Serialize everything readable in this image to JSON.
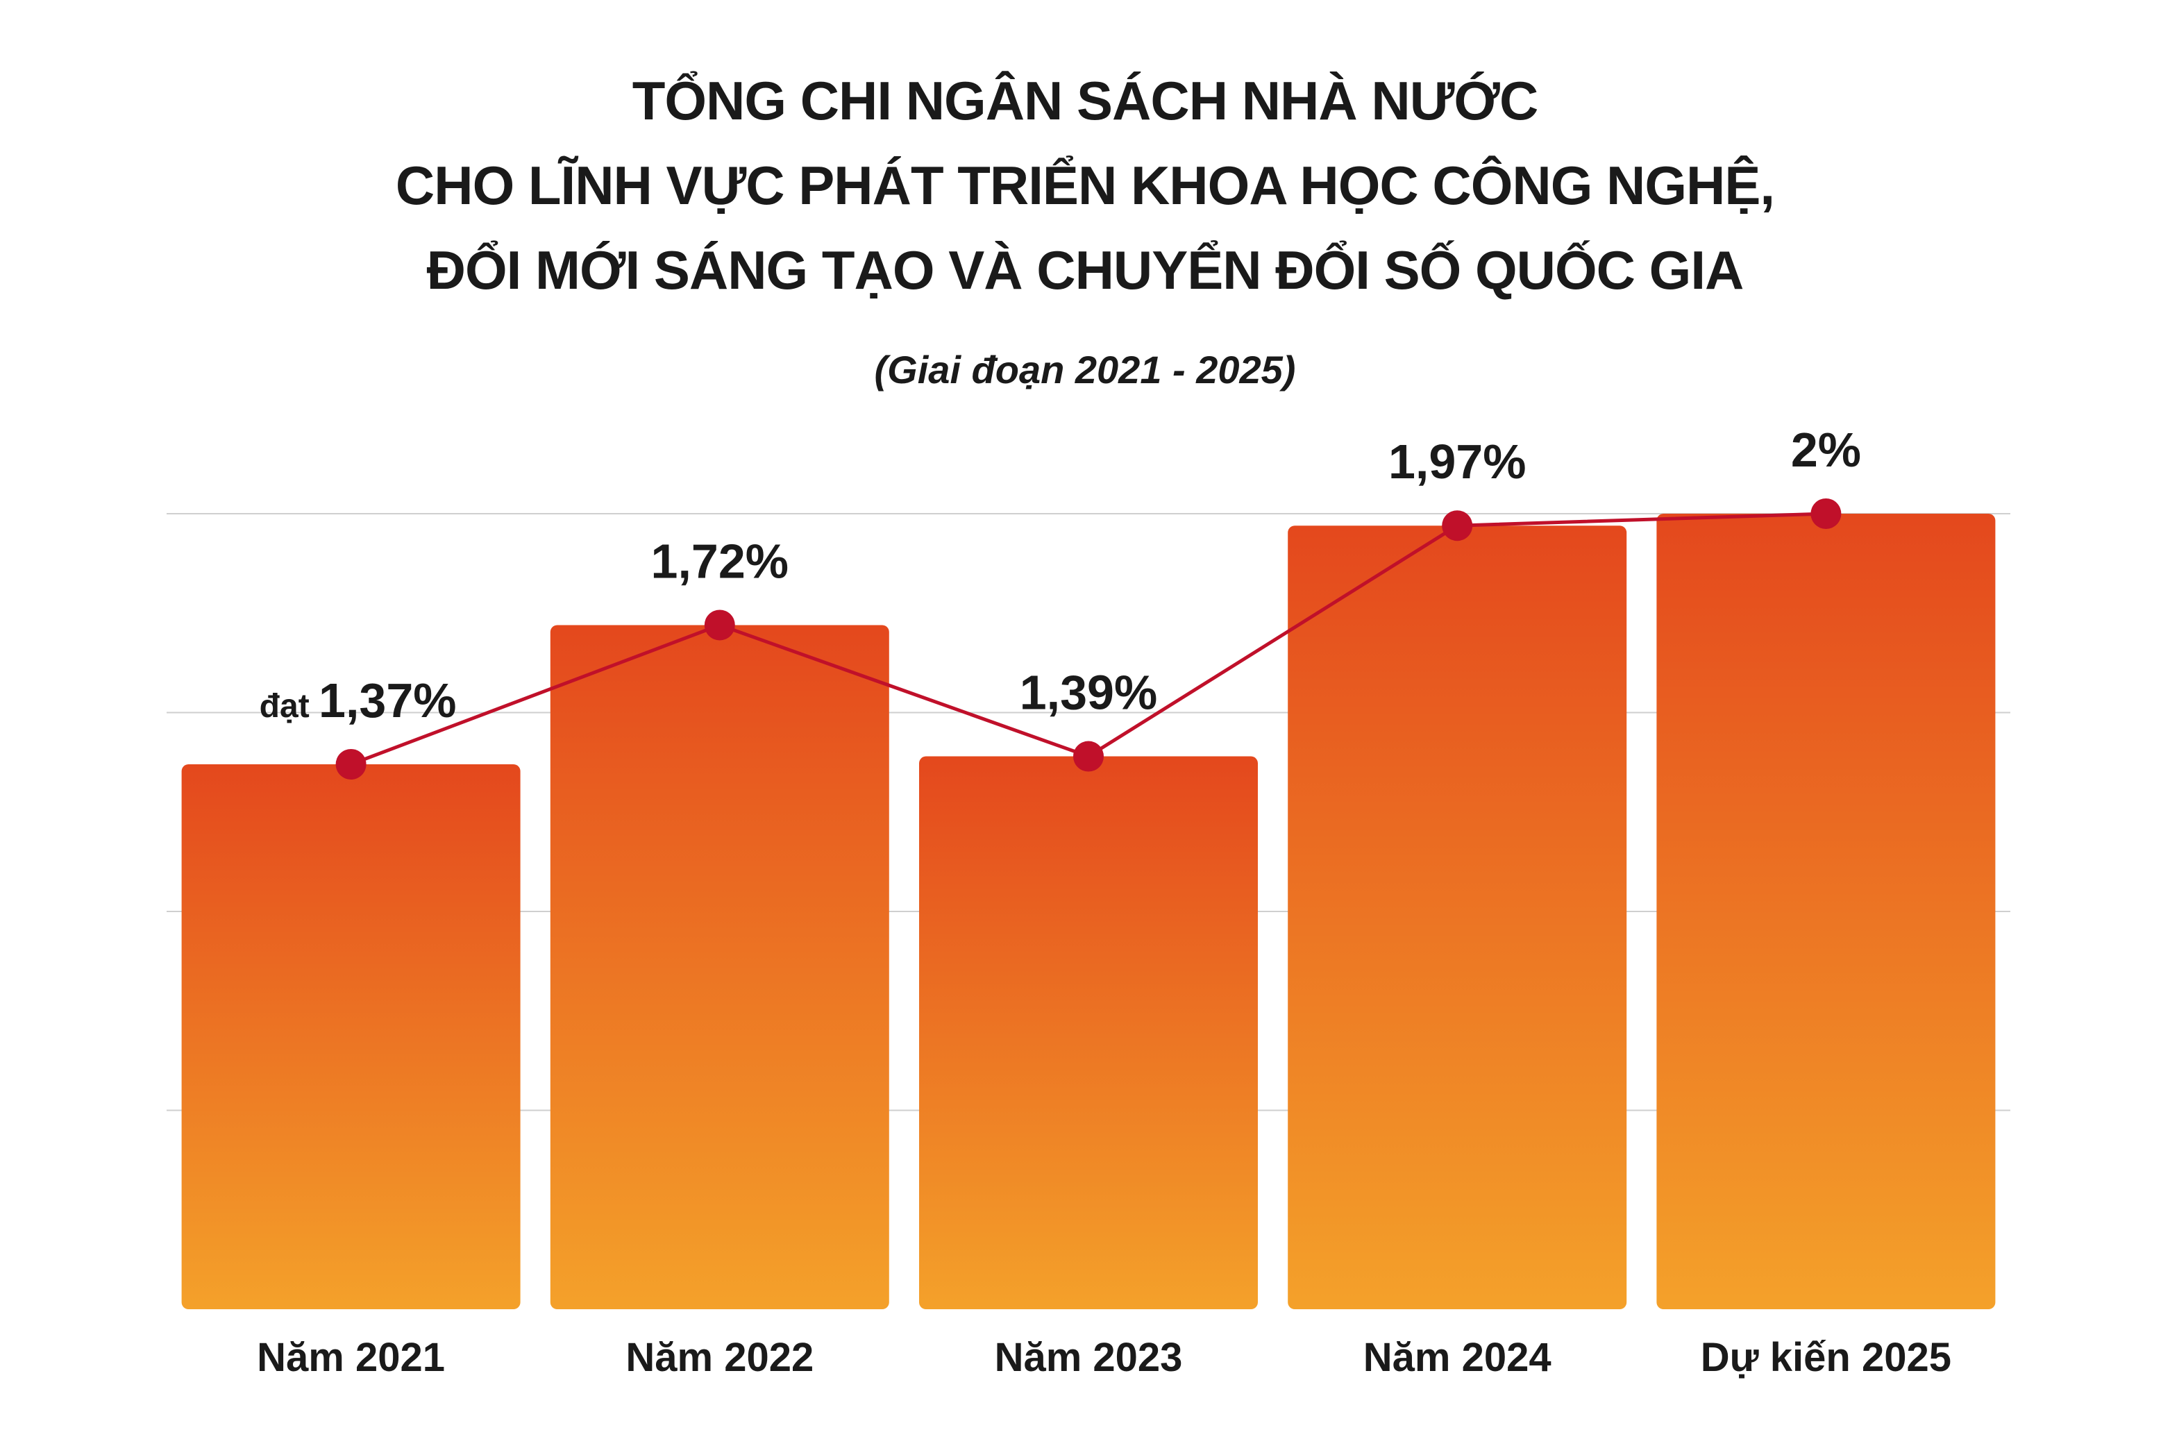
{
  "title": {
    "line1": "TỔNG CHI NGÂN SÁCH NHÀ NƯỚC",
    "line2": "CHO LĨNH VỰC PHÁT TRIỂN KHOA HỌC CÔNG NGHỆ,",
    "line3": "ĐỔI MỚI SÁNG TẠO VÀ CHUYỂN ĐỔI SỐ QUỐC GIA"
  },
  "subtitle": "(Giai đoạn 2021 - 2025)",
  "colors": {
    "bar_top": "#e4481d",
    "bar_bottom": "#f4a12a",
    "line": "#c0102a",
    "grid": "#cfcfcf"
  },
  "chart_data": {
    "type": "bar",
    "categories": [
      "Năm 2021",
      "Năm 2022",
      "Năm 2023",
      "Năm 2024",
      "Dự kiến 2025"
    ],
    "values": [
      1.37,
      1.72,
      1.39,
      1.97,
      2.0
    ],
    "value_labels": [
      "1,37%",
      "1,72%",
      "1,39%",
      "1,97%",
      "2%"
    ],
    "first_label_prefix": "đạt",
    "unit": "%",
    "overlay_line": true,
    "ylim": [
      0,
      2
    ],
    "grid": true
  }
}
